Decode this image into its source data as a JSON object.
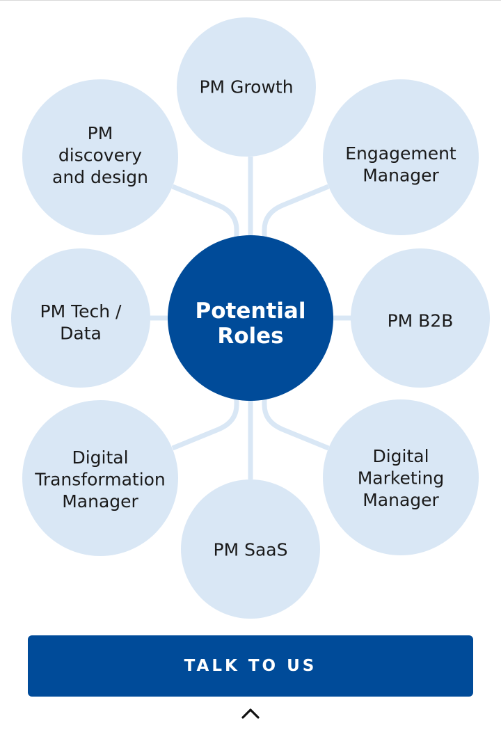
{
  "diagram": {
    "center": {
      "label": [
        "Potential",
        "Roles"
      ],
      "color": "#004b99"
    },
    "bubble_color": "#d9e7f5",
    "connector_color": "#d9e7f5",
    "roles": [
      {
        "id": "pm-growth",
        "label": [
          "PM Growth"
        ]
      },
      {
        "id": "engagement-manager",
        "label": [
          "Engagement",
          "Manager"
        ]
      },
      {
        "id": "pm-b2b",
        "label": [
          "PM B2B"
        ]
      },
      {
        "id": "digital-marketing-manager",
        "label": [
          "Digital",
          "Marketing",
          "Manager"
        ]
      },
      {
        "id": "pm-saas",
        "label": [
          "PM SaaS"
        ]
      },
      {
        "id": "digital-transformation-manager",
        "label": [
          "Digital",
          "Transformation",
          "Manager"
        ]
      },
      {
        "id": "pm-tech-data",
        "label": [
          "PM Tech /",
          "Data"
        ]
      },
      {
        "id": "pm-discovery-and-design",
        "label": [
          "PM",
          "discovery",
          "and design"
        ]
      }
    ]
  },
  "cta": {
    "label": "TALK TO US",
    "color": "#004b99"
  },
  "scroll_top": {
    "icon": "chevron-up-icon"
  }
}
